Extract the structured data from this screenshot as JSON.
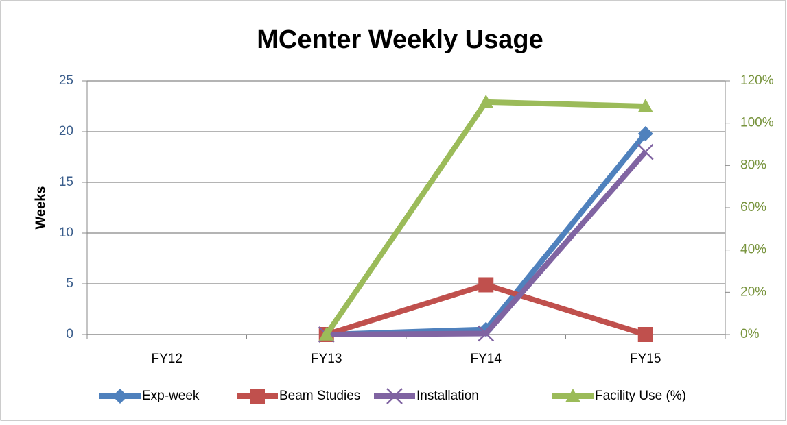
{
  "chart_data": {
    "type": "line",
    "title": "MCenter Weekly Usage",
    "y_label": "Weeks",
    "categories": [
      "FY12",
      "FY13",
      "FY14",
      "FY15"
    ],
    "series": [
      {
        "name": "Exp-week",
        "color": "#4f81bd",
        "marker": "diamond",
        "values": [
          null,
          0,
          0.5,
          19.8
        ]
      },
      {
        "name": "Beam Studies",
        "color": "#c0504d",
        "marker": "square",
        "values": [
          null,
          0,
          4.9,
          0
        ]
      },
      {
        "name": "Installation",
        "color": "#8064a2",
        "marker": "x",
        "values": [
          null,
          0,
          0.1,
          18
        ]
      },
      {
        "name": "Facility Use (%)",
        "color": "#9bbb59",
        "marker": "triangle",
        "axis": "y2",
        "values": [
          null,
          0,
          110,
          108
        ]
      }
    ],
    "ylim": [
      0,
      25
    ],
    "yticks": [
      0,
      5,
      10,
      15,
      20,
      25
    ],
    "y2lim": [
      0,
      120
    ],
    "y2ticks": [
      {
        "value": 0,
        "label": "0%"
      },
      {
        "value": 20,
        "label": "20%"
      },
      {
        "value": 40,
        "label": "40%"
      },
      {
        "value": 60,
        "label": "60%"
      },
      {
        "value": 80,
        "label": "80%"
      },
      {
        "value": 100,
        "label": "100%"
      },
      {
        "value": 120,
        "label": "120%"
      }
    ],
    "grid": true,
    "legend": "bottom"
  }
}
